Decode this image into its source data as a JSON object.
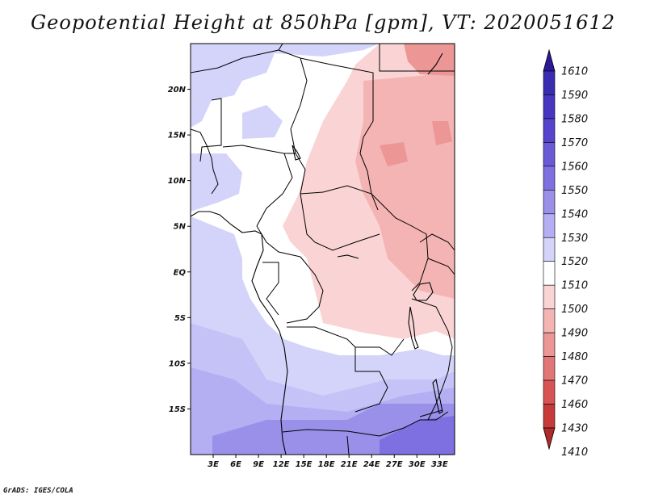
{
  "title": "Geopotential Height at 850hPa [gpm], VT: 2020051612",
  "credit": "GrADS: IGES/COLA",
  "map": {
    "lon_range": [
      0,
      35
    ],
    "lat_range": [
      -20,
      25
    ],
    "lat_ticks": [
      {
        "value": 20,
        "label": "20N"
      },
      {
        "value": 15,
        "label": "15N"
      },
      {
        "value": 10,
        "label": "10N"
      },
      {
        "value": 5,
        "label": "5N"
      },
      {
        "value": 0,
        "label": "EQ"
      },
      {
        "value": -5,
        "label": "5S"
      },
      {
        "value": -10,
        "label": "10S"
      },
      {
        "value": -15,
        "label": "15S"
      }
    ],
    "lon_ticks": [
      {
        "value": 3,
        "label": "3E"
      },
      {
        "value": 6,
        "label": "6E"
      },
      {
        "value": 9,
        "label": "9E"
      },
      {
        "value": 12,
        "label": "12E"
      },
      {
        "value": 15,
        "label": "15E"
      },
      {
        "value": 18,
        "label": "18E"
      },
      {
        "value": 21,
        "label": "21E"
      },
      {
        "value": 24,
        "label": "24E"
      },
      {
        "value": 27,
        "label": "27E"
      },
      {
        "value": 30,
        "label": "30E"
      },
      {
        "value": 33,
        "label": "33E"
      }
    ]
  },
  "colorbar": {
    "levels": [
      "1610",
      "1590",
      "1580",
      "1570",
      "1560",
      "1550",
      "1540",
      "1530",
      "1520",
      "1510",
      "1500",
      "1490",
      "1480",
      "1470",
      "1460",
      "1430",
      "1410"
    ],
    "colors": [
      "#2a1a9a",
      "#3a2cb0",
      "#4636c0",
      "#5644cc",
      "#6a5ad6",
      "#7e70e0",
      "#9a90ea",
      "#b4aef2",
      "#d4d4fa",
      "#ffffff",
      "#fad4d4",
      "#f4b4b4",
      "#ec9696",
      "#e27676",
      "#d85454",
      "#c83a3a",
      "#b02a2a"
    ]
  },
  "colors": {
    "pink_light": "#fad4d4",
    "pink_mid": "#f4b4b4",
    "pink_dark": "#ec9696",
    "lav_1": "#d4d4fa",
    "lav_2": "#c4c2f6",
    "lav_3": "#b4aef2",
    "lav_4": "#9a90ea",
    "lav_5": "#7e70e0"
  }
}
